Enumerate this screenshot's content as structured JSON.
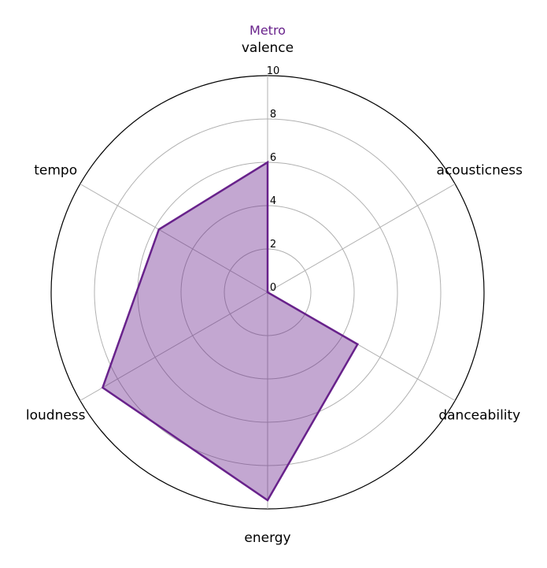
{
  "chart_data": {
    "type": "radar",
    "title": "Metro",
    "axes": [
      "valence",
      "acousticness",
      "danceability",
      "energy",
      "loudness",
      "tempo"
    ],
    "series": [
      {
        "name": "Metro",
        "values": [
          6.0,
          0.0,
          4.8,
          9.6,
          8.8,
          5.8
        ]
      }
    ],
    "rlim": [
      0,
      10
    ],
    "rticks": [
      "0",
      "2",
      "4",
      "6",
      "8",
      "10"
    ],
    "grid": true,
    "colors": {
      "line": "#68228b",
      "fill": "#68228b",
      "fill_opacity": 0.4,
      "grid": "#b0b0b0",
      "title": "#68228b"
    }
  }
}
